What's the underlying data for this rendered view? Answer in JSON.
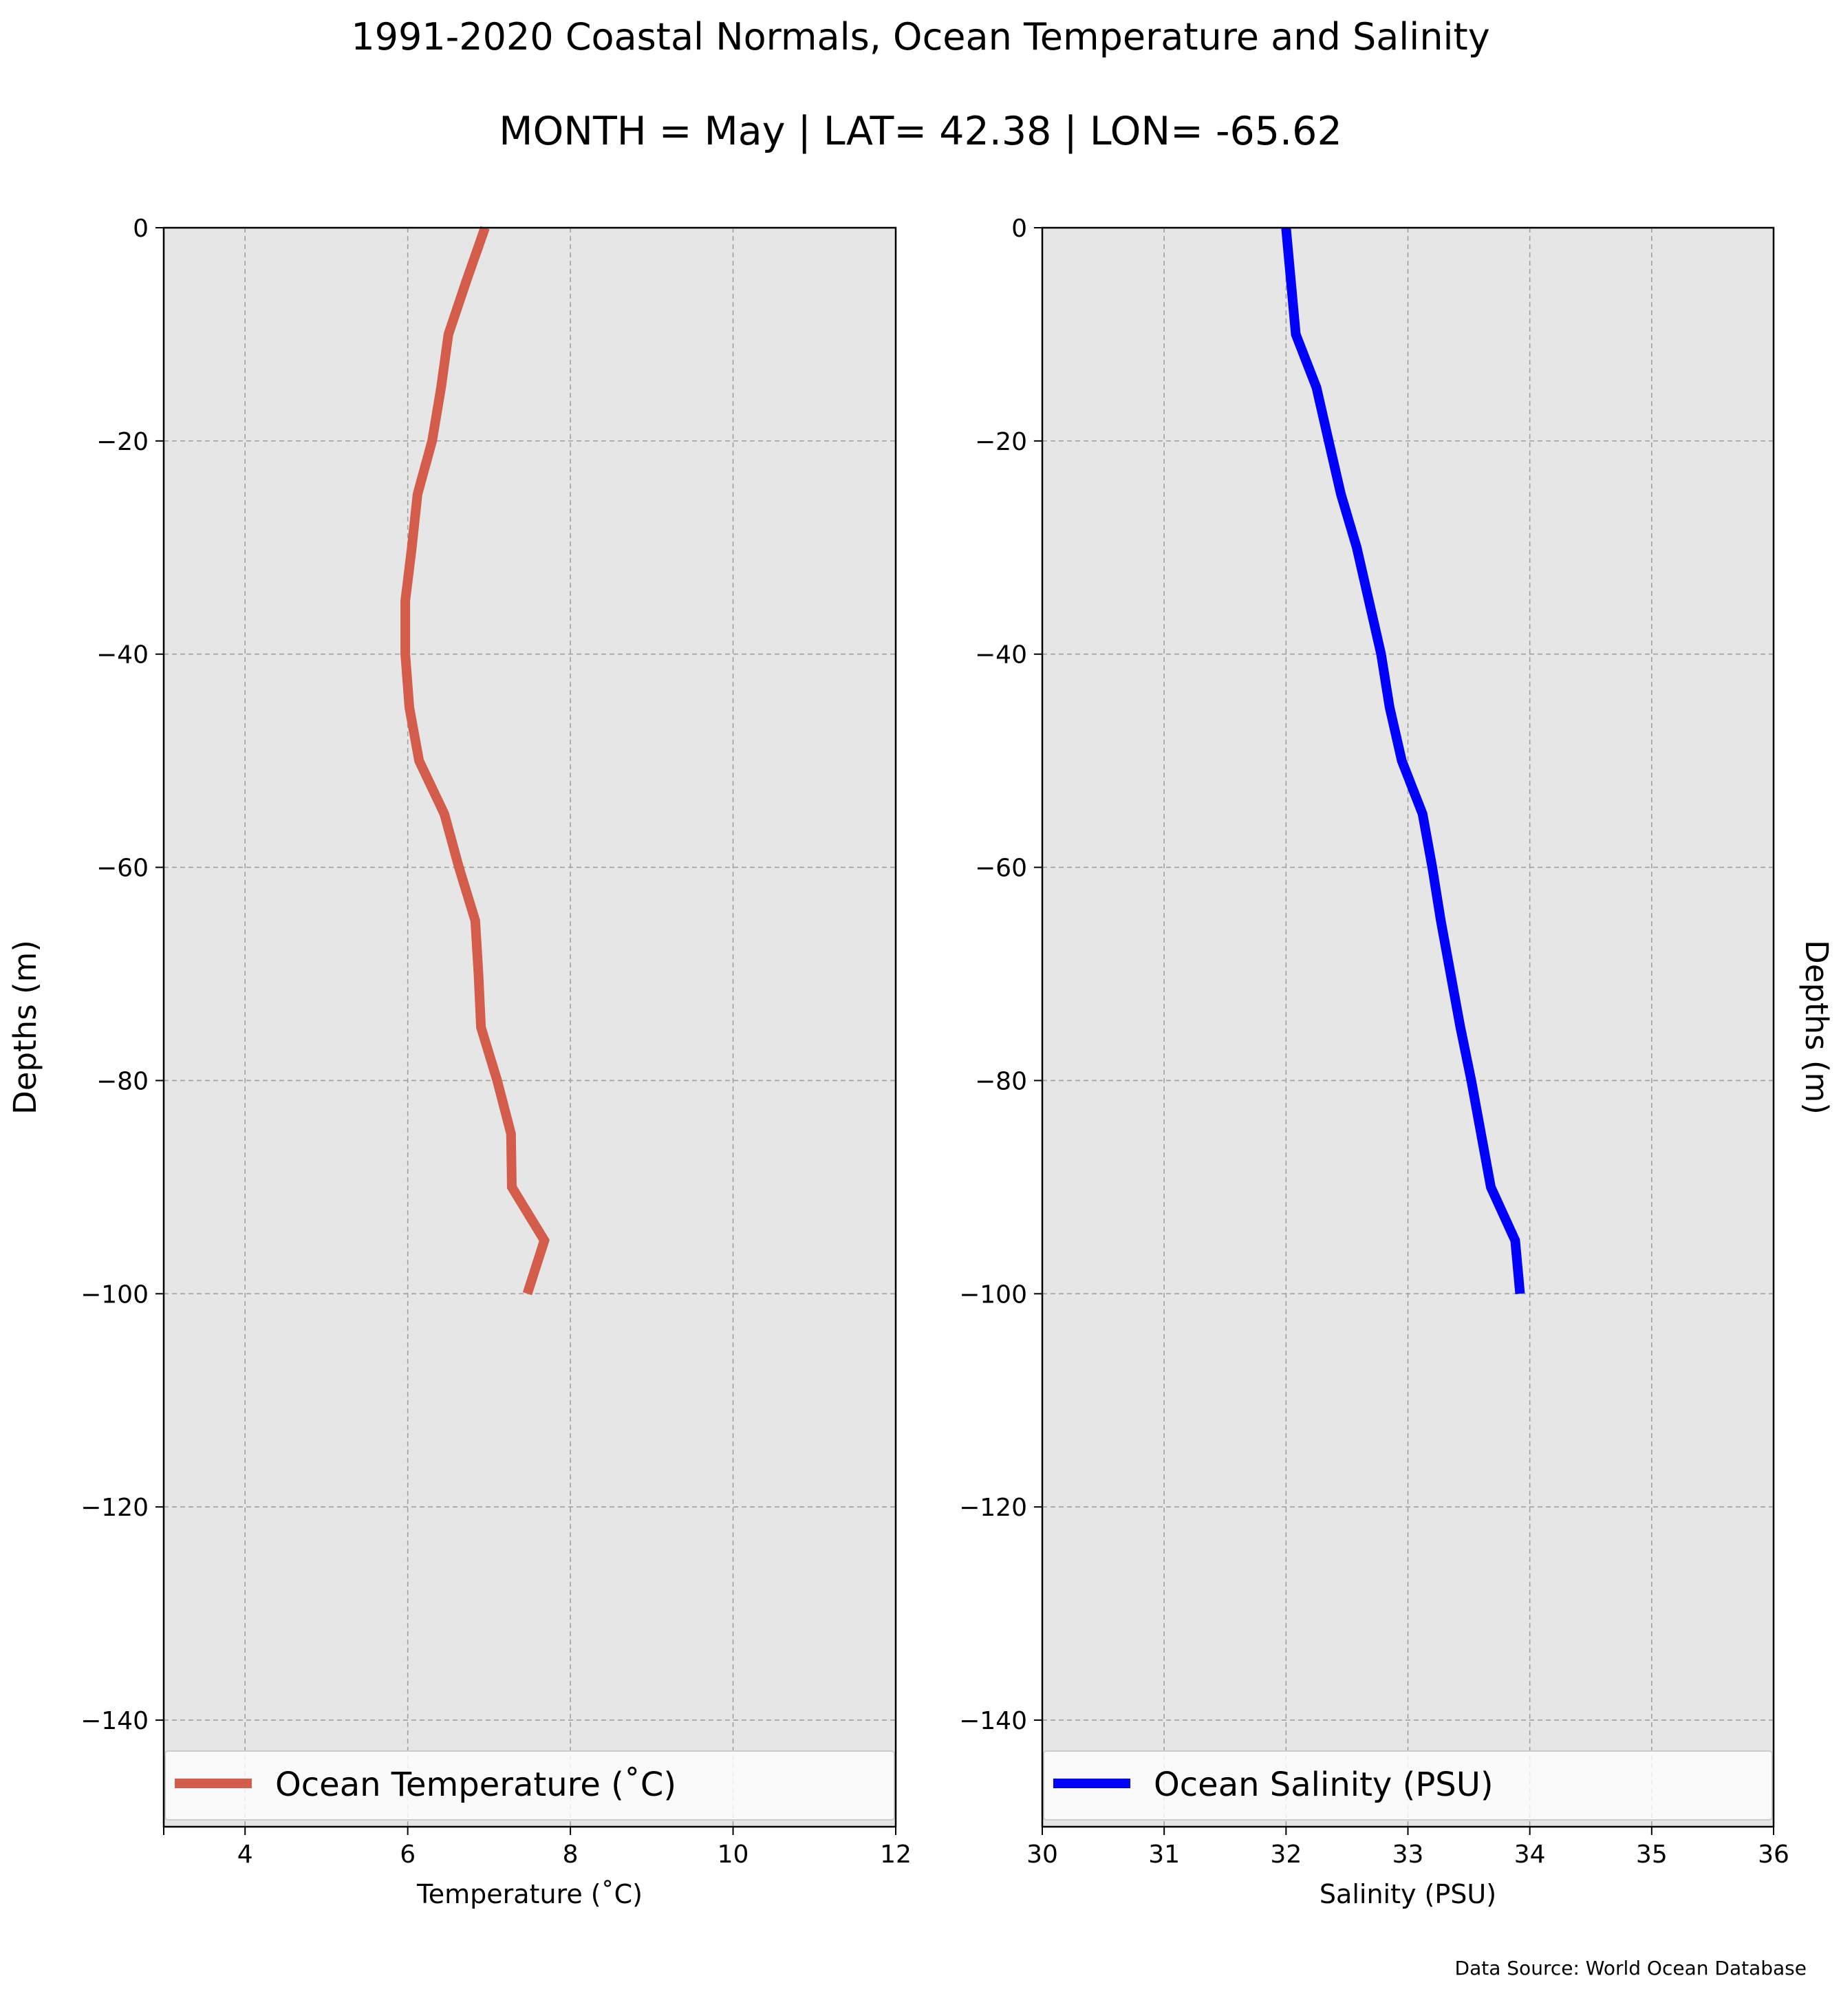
{
  "figure": {
    "title": "1991-2020 Coastal Normals, Ocean Temperature and Salinity",
    "subtitle": "MONTH = May | LAT= 42.38 | LON= -65.62",
    "source": "Data Source: World Ocean Database",
    "plot_background": "#e6e6e6",
    "grid_color": "#a0a0a0"
  },
  "chart_data": [
    {
      "type": "line",
      "xlabel": "Temperature ($^\\circ$C)",
      "xlabel_display": "Temperature (˚C)",
      "ylabel": "Depths (m)",
      "ylabel_position": "left",
      "xlim": [
        3,
        12
      ],
      "ylim": [
        -150,
        0
      ],
      "xticks": [
        4,
        6,
        8,
        10,
        12
      ],
      "xtick_labels": [
        "4",
        "6",
        "8",
        "10",
        "12"
      ],
      "yticks": [
        0,
        -20,
        -40,
        -60,
        -80,
        -100,
        -120,
        -140
      ],
      "ytick_labels": [
        "0",
        "−20",
        "−40",
        "−60",
        "−80",
        "−100",
        "−120",
        "−140"
      ],
      "grid": true,
      "legend_position": "bottom",
      "series": [
        {
          "name": "Ocean Temperature (˚C)",
          "color": "#d45c4a",
          "y": [
            0,
            -5,
            -10,
            -15,
            -20,
            -25,
            -30,
            -35,
            -40,
            -45,
            -50,
            -55,
            -60,
            -65,
            -70,
            -75,
            -80,
            -85,
            -90,
            -95,
            -100
          ],
          "x": [
            6.95,
            6.72,
            6.5,
            6.41,
            6.3,
            6.12,
            6.05,
            5.97,
            5.97,
            6.02,
            6.14,
            6.45,
            6.63,
            6.83,
            6.87,
            6.9,
            7.1,
            7.27,
            7.28,
            7.68,
            7.47
          ]
        }
      ]
    },
    {
      "type": "line",
      "xlabel": "Salinity (PSU)",
      "ylabel": "Depths (m)",
      "ylabel_position": "right",
      "xlim": [
        30,
        36
      ],
      "ylim": [
        -150,
        0
      ],
      "xticks": [
        30,
        31,
        32,
        33,
        34,
        35,
        36
      ],
      "xtick_labels": [
        "30",
        "31",
        "32",
        "33",
        "34",
        "35",
        "36"
      ],
      "yticks": [
        0,
        -20,
        -40,
        -60,
        -80,
        -100,
        -120,
        -140
      ],
      "ytick_labels": [
        "0",
        "−20",
        "−40",
        "−60",
        "−80",
        "−100",
        "−120",
        "−140"
      ],
      "grid": true,
      "legend_position": "bottom",
      "series": [
        {
          "name": "Ocean Salinity (PSU)",
          "color": "#0000ff",
          "y": [
            0,
            -5,
            -10,
            -15,
            -20,
            -25,
            -30,
            -35,
            -40,
            -45,
            -50,
            -55,
            -60,
            -65,
            -70,
            -75,
            -80,
            -85,
            -90,
            -95,
            -100
          ],
          "x": [
            32.0,
            32.04,
            32.08,
            32.25,
            32.35,
            32.45,
            32.58,
            32.68,
            32.78,
            32.85,
            32.95,
            33.12,
            33.2,
            33.27,
            33.35,
            33.43,
            33.52,
            33.6,
            33.68,
            33.88,
            33.92
          ]
        }
      ]
    }
  ]
}
